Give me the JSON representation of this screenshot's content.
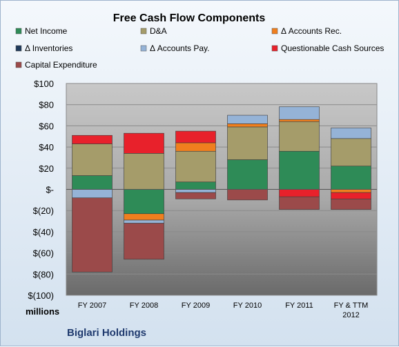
{
  "chart_data": {
    "type": "bar",
    "stacked": true,
    "title": "Free Cash Flow Components",
    "ylabel": "millions",
    "company": "Biglari Holdings",
    "categories": [
      "FY 2007",
      "FY 2008",
      "FY 2009",
      "FY 2010",
      "FY 2011",
      "FY & TTM 2012"
    ],
    "y_tick_labels": [
      "$100",
      "$80",
      "$60",
      "$40",
      "$20",
      "$-",
      "$(20)",
      "$(40)",
      "$(60)",
      "$(80)",
      "$(100)"
    ],
    "ylim": [
      -100,
      100
    ],
    "grid": true,
    "legend_position": "top",
    "series": [
      {
        "name": "Net Income",
        "color": "#2e8b57",
        "values": [
          13,
          -23,
          7,
          28,
          36,
          22
        ]
      },
      {
        "name": "D&A",
        "color": "#a59c6a",
        "values": [
          30,
          34,
          29,
          31,
          28,
          26
        ]
      },
      {
        "name": "Δ Accounts Rec.",
        "color": "#f07f1e",
        "values": [
          0,
          -6,
          8,
          3,
          2,
          -3
        ]
      },
      {
        "name": "Δ Inventories",
        "color": "#1f3a5a",
        "values": [
          0,
          0,
          0,
          0,
          0,
          0
        ]
      },
      {
        "name": "Δ Accounts Pay.",
        "color": "#95b3d7",
        "values": [
          -8,
          -3,
          -3,
          8,
          12,
          10
        ]
      },
      {
        "name": "Questionable Cash Sources",
        "color": "#e8212b",
        "values": [
          8,
          19,
          11,
          0,
          -7,
          -6
        ]
      },
      {
        "name": "Capital Expenditure",
        "color": "#9b4a4a",
        "values": [
          -70,
          -34,
          -6,
          -10,
          -12,
          -10
        ]
      }
    ]
  }
}
